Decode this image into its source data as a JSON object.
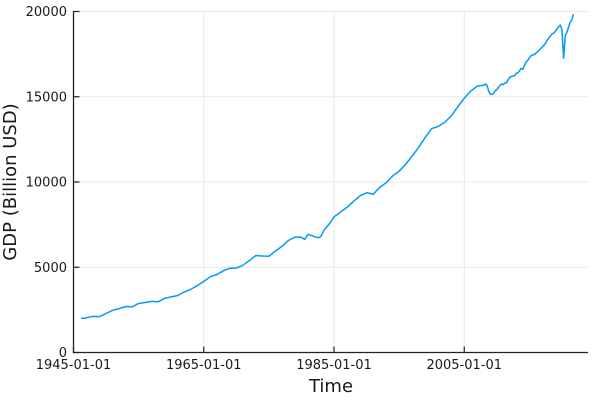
{
  "chart_data": {
    "type": "line",
    "title": "",
    "xlabel": "Time",
    "ylabel": "GDP (Billion USD)",
    "legend": "none",
    "grid": true,
    "xlim": [
      1945.0,
      2024.0
    ],
    "ylim": [
      0,
      20000
    ],
    "xticks": [
      {
        "value": 1945.0,
        "label": "1945-01-01"
      },
      {
        "value": 1965.0,
        "label": "1965-01-01"
      },
      {
        "value": 1985.0,
        "label": "1985-01-01"
      },
      {
        "value": 2005.0,
        "label": "2005-01-01"
      }
    ],
    "yticks": [
      {
        "value": 0,
        "label": "0"
      },
      {
        "value": 5000,
        "label": "5000"
      },
      {
        "value": 10000,
        "label": "10000"
      },
      {
        "value": 15000,
        "label": "15000"
      },
      {
        "value": 20000,
        "label": "20000"
      }
    ],
    "colors": {
      "line": "#009af9",
      "grid": "#e9e9e9",
      "axis": "#222222",
      "text": "#1a1a1a",
      "background": "#ffffff"
    },
    "series": [
      {
        "name": "GDP",
        "points": [
          [
            1946.25,
            2005
          ],
          [
            1946.75,
            2012
          ],
          [
            1947.0,
            2034
          ],
          [
            1948.0,
            2118
          ],
          [
            1949.0,
            2107
          ],
          [
            1950.0,
            2290
          ],
          [
            1951.0,
            2475
          ],
          [
            1952.0,
            2575
          ],
          [
            1953.0,
            2696
          ],
          [
            1954.0,
            2681
          ],
          [
            1955.0,
            2873
          ],
          [
            1956.0,
            2933
          ],
          [
            1957.0,
            2995
          ],
          [
            1958.0,
            2972
          ],
          [
            1959.0,
            3178
          ],
          [
            1960.0,
            3260
          ],
          [
            1961.0,
            3344
          ],
          [
            1962.0,
            3548
          ],
          [
            1963.0,
            3703
          ],
          [
            1964.0,
            3916
          ],
          [
            1965.0,
            4171
          ],
          [
            1966.0,
            4446
          ],
          [
            1967.0,
            4568
          ],
          [
            1968.0,
            4792
          ],
          [
            1969.0,
            4942
          ],
          [
            1970.0,
            4951
          ],
          [
            1971.0,
            5114
          ],
          [
            1972.0,
            5383
          ],
          [
            1973.0,
            5687
          ],
          [
            1974.0,
            5657
          ],
          [
            1975.0,
            5645
          ],
          [
            1976.0,
            5949
          ],
          [
            1977.0,
            6224
          ],
          [
            1978.0,
            6569
          ],
          [
            1979.0,
            6777
          ],
          [
            1980.0,
            6759
          ],
          [
            1980.5,
            6630
          ],
          [
            1981.0,
            6931
          ],
          [
            1981.75,
            6839
          ],
          [
            1982.25,
            6764
          ],
          [
            1982.75,
            6741
          ],
          [
            1983.0,
            6831
          ],
          [
            1983.5,
            7199
          ],
          [
            1984.0,
            7416
          ],
          [
            1984.5,
            7657
          ],
          [
            1985.0,
            7951
          ],
          [
            1986.0,
            8226
          ],
          [
            1987.0,
            8511
          ],
          [
            1988.0,
            8867
          ],
          [
            1989.0,
            9193
          ],
          [
            1990.0,
            9366
          ],
          [
            1990.75,
            9312
          ],
          [
            1991.0,
            9269
          ],
          [
            1992.0,
            9685
          ],
          [
            1993.0,
            9952
          ],
          [
            1994.0,
            10352
          ],
          [
            1995.0,
            10631
          ],
          [
            1996.0,
            11031
          ],
          [
            1997.0,
            11522
          ],
          [
            1998.0,
            12038
          ],
          [
            1999.0,
            12610
          ],
          [
            2000.0,
            13131
          ],
          [
            2001.0,
            13262
          ],
          [
            2002.0,
            13493
          ],
          [
            2003.0,
            13879
          ],
          [
            2004.0,
            14406
          ],
          [
            2005.0,
            14913
          ],
          [
            2006.0,
            15338
          ],
          [
            2007.0,
            15626
          ],
          [
            2008.0,
            15671
          ],
          [
            2008.25,
            15752
          ],
          [
            2008.5,
            15667
          ],
          [
            2008.75,
            15328
          ],
          [
            2009.0,
            15155
          ],
          [
            2009.25,
            15134
          ],
          [
            2009.5,
            15189
          ],
          [
            2009.75,
            15357
          ],
          [
            2010.0,
            15416
          ],
          [
            2010.25,
            15557
          ],
          [
            2010.5,
            15672
          ],
          [
            2010.75,
            15750
          ],
          [
            2011.0,
            15712
          ],
          [
            2011.25,
            15825
          ],
          [
            2011.5,
            15820
          ],
          [
            2011.75,
            16004
          ],
          [
            2012.0,
            16129
          ],
          [
            2012.25,
            16198
          ],
          [
            2012.5,
            16220
          ],
          [
            2012.75,
            16239
          ],
          [
            2013.0,
            16382
          ],
          [
            2013.25,
            16403
          ],
          [
            2013.5,
            16531
          ],
          [
            2013.75,
            16664
          ],
          [
            2014.0,
            16616
          ],
          [
            2014.25,
            16841
          ],
          [
            2014.5,
            17047
          ],
          [
            2014.75,
            17143
          ],
          [
            2015.0,
            17291
          ],
          [
            2015.25,
            17401
          ],
          [
            2015.5,
            17463
          ],
          [
            2015.75,
            17469
          ],
          [
            2016.0,
            17557
          ],
          [
            2016.25,
            17639
          ],
          [
            2016.5,
            17735
          ],
          [
            2016.75,
            17824
          ],
          [
            2017.0,
            17925
          ],
          [
            2017.25,
            18021
          ],
          [
            2017.5,
            18164
          ],
          [
            2017.75,
            18322
          ],
          [
            2018.0,
            18438
          ],
          [
            2018.25,
            18575
          ],
          [
            2018.5,
            18700
          ],
          [
            2018.75,
            18721
          ],
          [
            2019.0,
            18847
          ],
          [
            2019.25,
            18983
          ],
          [
            2019.5,
            19113
          ],
          [
            2019.75,
            19202
          ],
          [
            2020.0,
            18952
          ],
          [
            2020.25,
            17258
          ],
          [
            2020.5,
            18561
          ],
          [
            2020.75,
            18767
          ],
          [
            2021.0,
            19055
          ],
          [
            2021.25,
            19368
          ],
          [
            2021.5,
            19478
          ],
          [
            2021.75,
            19806
          ]
        ]
      }
    ]
  }
}
